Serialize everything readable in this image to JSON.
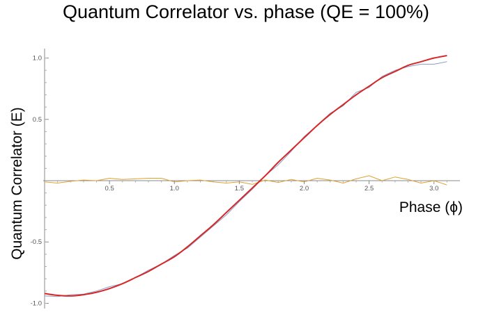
{
  "chart_data": {
    "type": "line",
    "title": "Quantum Correlator vs. phase (QE = 100%)",
    "xlabel": "Phase (ϕ)",
    "ylabel": "Quantum Correlator (E)",
    "xlim": [
      0.0,
      3.2
    ],
    "ylim": [
      -1.02,
      1.02
    ],
    "x_ticks": [
      0.5,
      1.0,
      1.5,
      2.0,
      2.5,
      3.0
    ],
    "x_tick_labels": [
      "0.5",
      "1.0",
      "1.5",
      "2.0",
      "2.5",
      "3.0"
    ],
    "y_ticks": [
      -1.0,
      -0.5,
      0.5,
      1.0
    ],
    "y_tick_labels": [
      "-1.0",
      "-0.5",
      "0.5",
      "1.0"
    ],
    "grid": false,
    "series": [
      {
        "color": "#d62728",
        "x": [
          0.0,
          0.1,
          0.2,
          0.3,
          0.4,
          0.5,
          0.6,
          0.7,
          0.8,
          0.9,
          1.0,
          1.1,
          1.2,
          1.3,
          1.4,
          1.5,
          1.6,
          1.7,
          1.8,
          1.9,
          2.0,
          2.1,
          2.2,
          2.3,
          2.4,
          2.5,
          2.6,
          2.7,
          2.8,
          2.9,
          3.0,
          3.1
        ],
        "values": [
          -0.92,
          -0.935,
          -0.94,
          -0.93,
          -0.91,
          -0.88,
          -0.84,
          -0.79,
          -0.74,
          -0.68,
          -0.62,
          -0.54,
          -0.45,
          -0.36,
          -0.26,
          -0.16,
          -0.06,
          0.04,
          0.15,
          0.25,
          0.35,
          0.45,
          0.54,
          0.62,
          0.7,
          0.77,
          0.84,
          0.89,
          0.94,
          0.97,
          1.0,
          1.02
        ]
      },
      {
        "color": "#8a9bc4",
        "x": [
          0.0,
          0.1,
          0.2,
          0.3,
          0.4,
          0.5,
          0.6,
          0.7,
          0.8,
          0.9,
          1.0,
          1.1,
          1.2,
          1.3,
          1.4,
          1.5,
          1.6,
          1.7,
          1.8,
          1.9,
          2.0,
          2.1,
          2.2,
          2.3,
          2.4,
          2.5,
          2.6,
          2.7,
          2.8,
          2.9,
          3.0,
          3.1
        ],
        "values": [
          -0.94,
          -0.945,
          -0.93,
          -0.925,
          -0.9,
          -0.865,
          -0.84,
          -0.79,
          -0.73,
          -0.68,
          -0.61,
          -0.55,
          -0.46,
          -0.37,
          -0.28,
          -0.17,
          -0.07,
          0.04,
          0.13,
          0.24,
          0.36,
          0.45,
          0.55,
          0.61,
          0.72,
          0.76,
          0.85,
          0.9,
          0.93,
          0.95,
          0.95,
          0.97
        ]
      },
      {
        "color": "#e0a030",
        "x": [
          0.0,
          0.1,
          0.2,
          0.3,
          0.4,
          0.5,
          0.6,
          0.7,
          0.8,
          0.9,
          1.0,
          1.1,
          1.2,
          1.3,
          1.4,
          1.5,
          1.6,
          1.7,
          1.8,
          1.9,
          2.0,
          2.1,
          2.2,
          2.3,
          2.4,
          2.5,
          2.6,
          2.7,
          2.8,
          2.9,
          3.0,
          3.1
        ],
        "values": [
          -0.01,
          -0.02,
          -0.005,
          0.005,
          0.0,
          0.02,
          0.01,
          0.015,
          0.02,
          0.02,
          -0.01,
          0.0,
          0.005,
          -0.01,
          -0.02,
          -0.01,
          -0.03,
          0.005,
          -0.015,
          0.01,
          -0.01,
          0.02,
          0.005,
          -0.02,
          0.015,
          0.04,
          0.0,
          0.03,
          0.01,
          -0.02,
          0.0,
          -0.035
        ]
      }
    ]
  }
}
